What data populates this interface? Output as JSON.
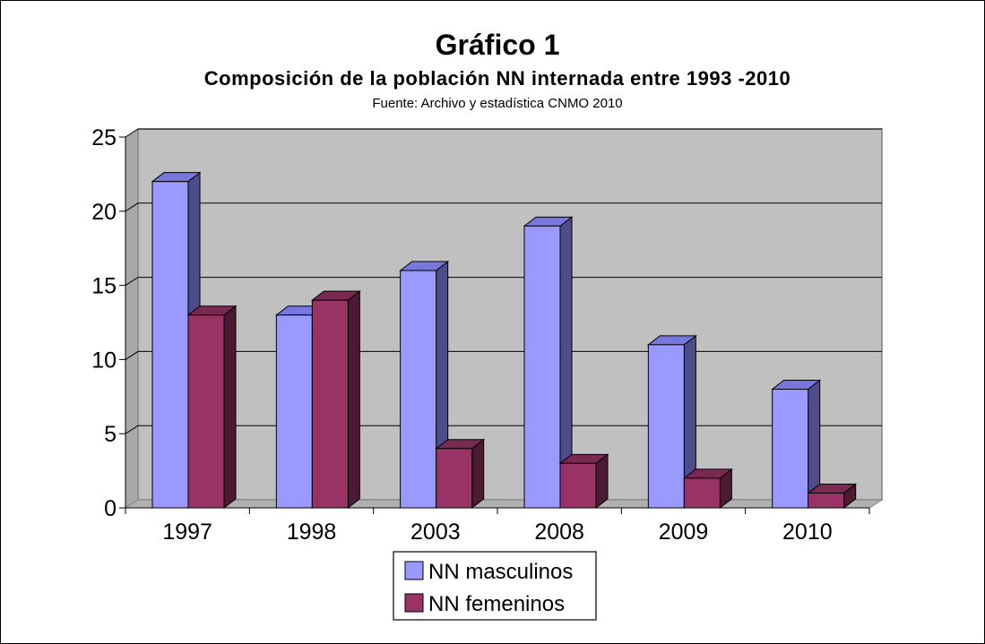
{
  "chart_data": {
    "type": "bar",
    "title": "Gráfico 1",
    "subtitle": "Composición de la población NN internada entre 1993 -2010",
    "source": "Fuente: Archivo y estadística CNMO 2010",
    "categories": [
      "1997",
      "1998",
      "2003",
      "2008",
      "2009",
      "2010"
    ],
    "series": [
      {
        "name": "NN masculinos",
        "values": [
          22,
          13,
          16,
          19,
          11,
          8
        ],
        "color": "#9999ff",
        "top_color": "#7777dd",
        "side_color": "#4d4d8a"
      },
      {
        "name": "NN femeninos",
        "values": [
          13,
          14,
          4,
          3,
          2,
          1
        ],
        "color": "#993366",
        "top_color": "#7a2952",
        "side_color": "#4d1a33"
      }
    ],
    "ylim": [
      0,
      25
    ],
    "yticks": [
      "0",
      "5",
      "10",
      "15",
      "20",
      "25"
    ],
    "grid": true,
    "legend": "bottom",
    "plot_background": "#c0c0c0",
    "style": "3d-clustered-columns"
  }
}
